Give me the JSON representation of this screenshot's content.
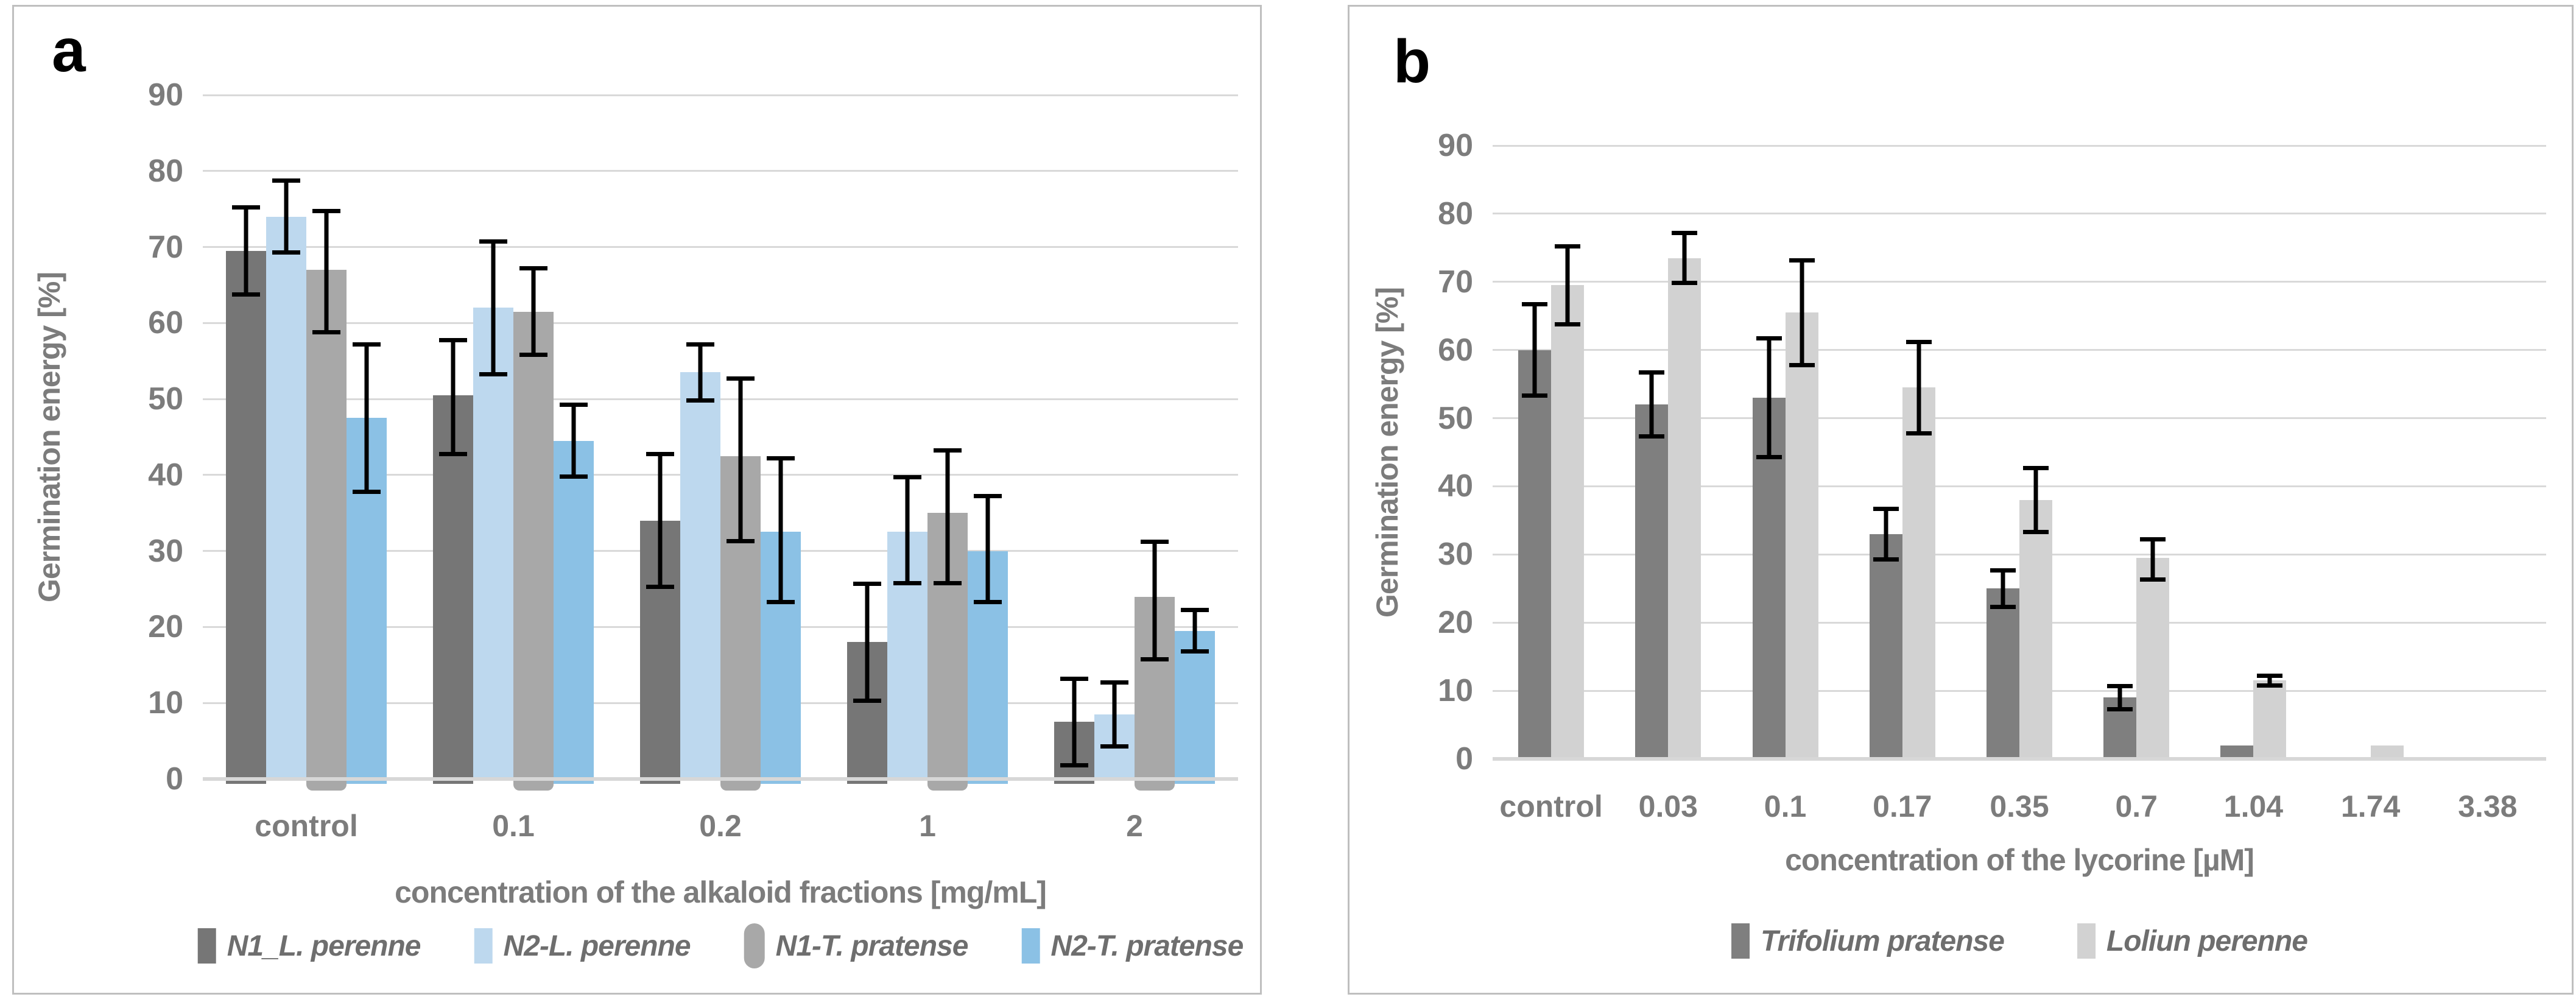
{
  "figure": {
    "background": "#ffffff",
    "panel_border_color": "#bfbfbf",
    "gridline_color": "#d9d9d9",
    "baseline_color": "#d7d7d7",
    "tick_text_color": "#7c7c7c",
    "error_bar_color": "#000000"
  },
  "chart_data": [
    {
      "panel_label": "a",
      "type": "bar",
      "title": "",
      "ylabel": "Germination energy [%]",
      "xlabel": "concentration of the alkaloid fractions [mg/mL]",
      "ylim": [
        0,
        90
      ],
      "ystep": 10,
      "grid": true,
      "legend_position": "bottom",
      "categories": [
        "control",
        "0.1",
        "0.2",
        "1",
        "2"
      ],
      "series": [
        {
          "name": "N1_L. perenne",
          "color": "#767676",
          "key_shape": "square",
          "values": [
            69.5,
            50.5,
            34,
            18,
            7.5
          ],
          "err_low": [
            63.5,
            42.5,
            25,
            10,
            1.5
          ],
          "err_high": [
            75.5,
            58,
            43,
            26,
            13.5
          ]
        },
        {
          "name": "N2-L. perenne",
          "color": "#bdd8ee",
          "key_shape": "square",
          "values": [
            74,
            62,
            53.5,
            32.5,
            8.5
          ],
          "err_low": [
            69,
            53,
            49.5,
            25.5,
            4
          ],
          "err_high": [
            79,
            71,
            57.5,
            40,
            13
          ]
        },
        {
          "name": "N1-T. pratense",
          "color": "#a8a8a8",
          "key_shape": "pill",
          "values": [
            67,
            61.5,
            42.5,
            35,
            24
          ],
          "err_low": [
            58.5,
            55.5,
            31,
            25.5,
            15.5
          ],
          "err_high": [
            75,
            67.5,
            53,
            43.5,
            31.5
          ]
        },
        {
          "name": "N2-T. pratense",
          "color": "#8bc1e5",
          "key_shape": "square",
          "values": [
            47.5,
            44.5,
            32.5,
            30,
            19.5
          ],
          "err_low": [
            37.5,
            39.5,
            23,
            23,
            16.5
          ],
          "err_high": [
            57.5,
            49.5,
            42.5,
            37.5,
            22.5
          ]
        }
      ]
    },
    {
      "panel_label": "b",
      "type": "bar",
      "title": "",
      "ylabel": "Germination energy [%]",
      "xlabel": "concentration of the lycorine [µM]",
      "ylim": [
        0,
        90
      ],
      "ystep": 10,
      "grid": true,
      "legend_position": "bottom",
      "categories": [
        "control",
        "0.03",
        "0.1",
        "0.17",
        "0.35",
        "0.7",
        "1.04",
        "1.74",
        "3.38"
      ],
      "series": [
        {
          "name": "Trifolium pratense",
          "color": "#7f7f7f",
          "key_shape": "square",
          "values": [
            60,
            52,
            53,
            33,
            25,
            9,
            2,
            0,
            0
          ],
          "err_low": [
            53,
            47,
            44,
            29,
            22,
            7,
            null,
            null,
            null
          ],
          "err_high": [
            67,
            57,
            62,
            37,
            28,
            11,
            null,
            null,
            null
          ]
        },
        {
          "name": "Loliun perenne",
          "color": "#d2d2d2",
          "key_shape": "square",
          "values": [
            69.5,
            73.5,
            65.5,
            54.5,
            38,
            29.5,
            11.5,
            2,
            0
          ],
          "err_low": [
            63.5,
            69.5,
            57.5,
            47.5,
            33,
            26,
            10.5,
            null,
            null
          ],
          "err_high": [
            75.5,
            77.5,
            73.5,
            61.5,
            43,
            32.5,
            12.5,
            null,
            null
          ]
        }
      ]
    }
  ]
}
